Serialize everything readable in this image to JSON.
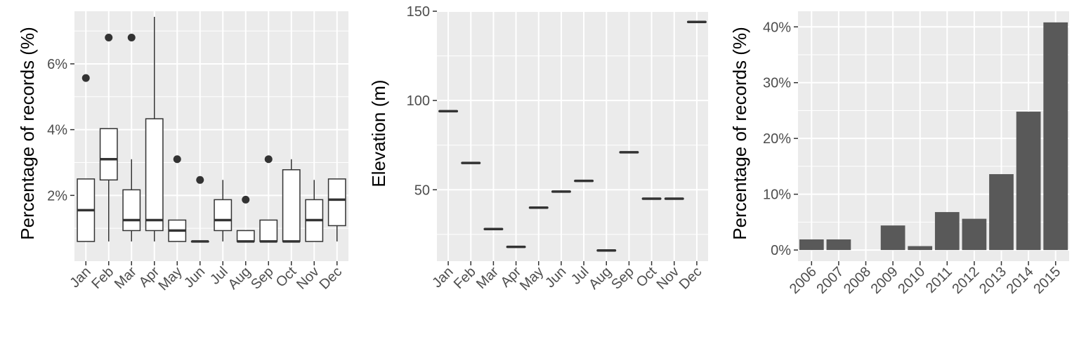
{
  "colors": {
    "panel_bg": "#ebebeb",
    "grid": "#ffffff",
    "mark": "#333333",
    "bar_fill": "#595959",
    "tick_text": "#4d4d4d"
  },
  "chart_data": [
    {
      "type": "box",
      "xlabel": "",
      "ylabel": "Percentage of records (%)",
      "categories": [
        "Jan",
        "Feb",
        "Mar",
        "Apr",
        "May",
        "Jun",
        "Jul",
        "Aug",
        "Sep",
        "Oct",
        "Nov",
        "Dec"
      ],
      "ylim": [
        0.0,
        7.6
      ],
      "yticks": [
        2,
        4,
        6
      ],
      "ytick_labels": [
        "2%",
        "4%",
        "6%"
      ],
      "boxes": [
        {
          "min": 0.6,
          "q1": 0.6,
          "median": 1.55,
          "q3": 2.5,
          "max": 2.5,
          "outliers": [
            5.57
          ]
        },
        {
          "min": 0.6,
          "q1": 2.47,
          "median": 3.1,
          "q3": 4.03,
          "max": 4.03,
          "outliers": [
            6.8
          ]
        },
        {
          "min": 0.6,
          "q1": 0.93,
          "median": 1.25,
          "q3": 2.17,
          "max": 3.1,
          "outliers": [
            6.8
          ]
        },
        {
          "min": 0.6,
          "q1": 0.93,
          "median": 1.25,
          "q3": 4.33,
          "max": 7.43,
          "outliers": []
        },
        {
          "min": 0.6,
          "q1": 0.6,
          "median": 0.93,
          "q3": 1.25,
          "max": 1.25,
          "outliers": [
            3.1
          ]
        },
        {
          "min": 0.6,
          "q1": 0.6,
          "median": 0.6,
          "q3": 0.6,
          "max": 0.6,
          "outliers": [
            2.47
          ]
        },
        {
          "min": 0.6,
          "q1": 0.93,
          "median": 1.25,
          "q3": 1.87,
          "max": 2.47,
          "outliers": []
        },
        {
          "min": 0.6,
          "q1": 0.6,
          "median": 0.6,
          "q3": 0.93,
          "max": 0.93,
          "outliers": [
            1.87
          ]
        },
        {
          "min": 0.6,
          "q1": 0.6,
          "median": 0.6,
          "q3": 1.25,
          "max": 1.25,
          "outliers": [
            3.1
          ]
        },
        {
          "min": 0.6,
          "q1": 0.6,
          "median": 0.6,
          "q3": 2.78,
          "max": 3.1,
          "outliers": []
        },
        {
          "min": 0.6,
          "q1": 0.6,
          "median": 1.25,
          "q3": 1.87,
          "max": 2.47,
          "outliers": []
        },
        {
          "min": 0.6,
          "q1": 1.08,
          "median": 1.87,
          "q3": 2.5,
          "max": 2.5,
          "outliers": []
        }
      ],
      "grid": true,
      "legend": "none"
    },
    {
      "type": "scatter",
      "marker": "dash",
      "xlabel": "",
      "ylabel": "Elevation (m)",
      "categories": [
        "Jan",
        "Feb",
        "Mar",
        "Apr",
        "May",
        "Jun",
        "Jul",
        "Aug",
        "Sep",
        "Oct",
        "Nov",
        "Dec"
      ],
      "values": [
        94,
        65,
        28,
        18,
        40,
        49,
        55,
        16,
        71,
        45,
        45,
        144
      ],
      "ylim": [
        10,
        150
      ],
      "yticks": [
        50,
        100,
        150
      ],
      "ytick_labels": [
        "50",
        "100",
        "150"
      ],
      "grid": true,
      "legend": "none"
    },
    {
      "type": "bar",
      "xlabel": "",
      "ylabel": "Percentage of records (%)",
      "categories": [
        "2006",
        "2007",
        "2008",
        "2009",
        "2010",
        "2011",
        "2012",
        "2013",
        "2014",
        "2015"
      ],
      "values": [
        1.9,
        1.9,
        0,
        4.4,
        0.7,
        6.8,
        5.6,
        13.6,
        24.8,
        40.8
      ],
      "ylim": [
        -2.0,
        42.8
      ],
      "yticks": [
        0,
        10,
        20,
        30,
        40
      ],
      "ytick_labels": [
        "0%",
        "10%",
        "20%",
        "30%",
        "40%"
      ],
      "grid": true,
      "legend": "none"
    }
  ]
}
